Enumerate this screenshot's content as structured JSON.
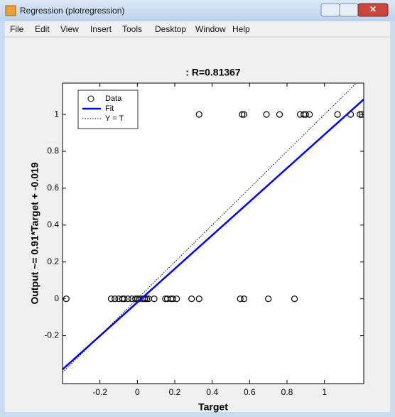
{
  "window": {
    "title": "Regression (plotregression)",
    "menu": [
      "File",
      "Edit",
      "View",
      "Insert",
      "Tools",
      "Desktop",
      "Window",
      "Help"
    ]
  },
  "chart_data": {
    "type": "scatter",
    "title": ": R=0.81367",
    "xlabel": "Target",
    "ylabel": "Output ~= 0.91*Target + -0.019",
    "xlim": [
      -0.4,
      1.21
    ],
    "ylim": [
      -0.46,
      1.17
    ],
    "xticks": [
      -0.2,
      0,
      0.2,
      0.4,
      0.6,
      0.8,
      1
    ],
    "yticks": [
      -0.2,
      0,
      0.2,
      0.4,
      0.6,
      0.8,
      1
    ],
    "legend": "upper left",
    "grid": false,
    "series": [
      {
        "name": "Data",
        "color": "#000000",
        "marker": "o",
        "x": [
          0.33,
          0.56,
          0.57,
          0.69,
          0.76,
          0.87,
          0.89,
          0.9,
          0.92,
          1.07,
          1.14,
          1.19,
          1.2,
          -0.38,
          -0.14,
          -0.12,
          -0.1,
          -0.08,
          -0.07,
          -0.05,
          -0.03,
          -0.01,
          0,
          0.01,
          0.03,
          0.04,
          0.05,
          0.06,
          0.09,
          0.15,
          0.16,
          0.18,
          0.19,
          0.21,
          0.29,
          0.33,
          0.55,
          0.57,
          0.7,
          0.84
        ],
        "values": [
          1,
          1,
          1,
          1,
          1,
          1,
          1,
          1,
          1,
          1,
          1,
          1,
          1,
          0,
          0,
          0,
          0,
          0,
          0,
          0,
          0,
          0,
          0,
          0,
          0,
          0,
          0,
          0,
          0,
          0,
          0,
          0,
          0,
          0,
          0,
          0,
          0,
          0,
          0,
          0
        ]
      },
      {
        "name": "Fit",
        "color": "#0000ff",
        "linestyle": "solid",
        "x": [
          -0.4,
          1.21
        ],
        "values": [
          -0.383,
          1.082
        ]
      },
      {
        "name": "Y = T",
        "color": "#000000",
        "linestyle": "dotted",
        "x": [
          -0.4,
          1.21
        ],
        "values": [
          -0.4,
          1.21
        ]
      }
    ]
  }
}
